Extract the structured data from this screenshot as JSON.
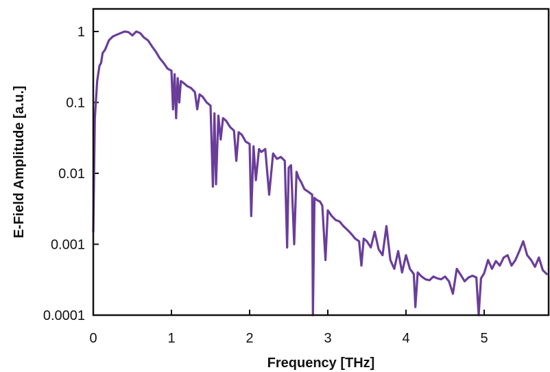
{
  "chart_data": {
    "type": "line",
    "title": "",
    "xlabel": "Frequency [THz]",
    "ylabel": "E-Field Amplitude [a.u.]",
    "xlim": [
      0,
      5.8
    ],
    "ylim": [
      0.0001,
      1.5
    ],
    "yscale": "log",
    "grid": false,
    "legend": "none",
    "color": "#6a3d9a",
    "x_ticks": [
      {
        "value": 0,
        "label": "0"
      },
      {
        "value": 1,
        "label": "1"
      },
      {
        "value": 2,
        "label": "2"
      },
      {
        "value": 3,
        "label": "3"
      },
      {
        "value": 4,
        "label": "4"
      },
      {
        "value": 5,
        "label": "5"
      }
    ],
    "y_ticks": [
      {
        "value": 1,
        "label": "1"
      },
      {
        "value": 0.1,
        "label": "0.1"
      },
      {
        "value": 0.01,
        "label": "0.01"
      },
      {
        "value": 0.001,
        "label": "0.001"
      },
      {
        "value": 0.0001,
        "label": "0.0001"
      }
    ],
    "series": [
      {
        "x": [
          0.0,
          0.02,
          0.05,
          0.08,
          0.1,
          0.12,
          0.15,
          0.2,
          0.25,
          0.3,
          0.35,
          0.4,
          0.45,
          0.5,
          0.55,
          0.6,
          0.65,
          0.7,
          0.75,
          0.8,
          0.85,
          0.9,
          0.95,
          1.0,
          1.02,
          1.04,
          1.06,
          1.08,
          1.1,
          1.12,
          1.15,
          1.2,
          1.25,
          1.3,
          1.33,
          1.36,
          1.4,
          1.45,
          1.5,
          1.53,
          1.55,
          1.57,
          1.6,
          1.63,
          1.66,
          1.7,
          1.75,
          1.8,
          1.83,
          1.86,
          1.9,
          1.95,
          2.0,
          2.02,
          2.05,
          2.08,
          2.12,
          2.15,
          2.2,
          2.25,
          2.3,
          2.35,
          2.4,
          2.45,
          2.48,
          2.5,
          2.53,
          2.57,
          2.6,
          2.63,
          2.66,
          2.7,
          2.75,
          2.8,
          2.81,
          2.83,
          2.86,
          2.9,
          2.93,
          2.97,
          3.0,
          3.05,
          3.1,
          3.15,
          3.2,
          3.25,
          3.3,
          3.35,
          3.4,
          3.43,
          3.46,
          3.5,
          3.55,
          3.6,
          3.65,
          3.7,
          3.75,
          3.8,
          3.85,
          3.9,
          3.95,
          4.0,
          4.05,
          4.1,
          4.12,
          4.15,
          4.2,
          4.25,
          4.3,
          4.35,
          4.4,
          4.45,
          4.5,
          4.55,
          4.6,
          4.65,
          4.7,
          4.75,
          4.8,
          4.85,
          4.9,
          4.93,
          4.96,
          5.0,
          5.05,
          5.1,
          5.15,
          5.2,
          5.25,
          5.3,
          5.35,
          5.4,
          5.45,
          5.5,
          5.55,
          5.6,
          5.65,
          5.7,
          5.75,
          5.8
        ],
        "values": [
          0.0015,
          0.06,
          0.2,
          0.33,
          0.36,
          0.5,
          0.55,
          0.75,
          0.85,
          0.9,
          0.95,
          1.0,
          0.98,
          0.88,
          1.0,
          0.95,
          0.82,
          0.75,
          0.62,
          0.52,
          0.42,
          0.36,
          0.3,
          0.28,
          0.08,
          0.25,
          0.06,
          0.22,
          0.1,
          0.2,
          0.19,
          0.17,
          0.16,
          0.14,
          0.08,
          0.13,
          0.12,
          0.1,
          0.09,
          0.0065,
          0.07,
          0.007,
          0.065,
          0.03,
          0.06,
          0.055,
          0.045,
          0.04,
          0.015,
          0.038,
          0.035,
          0.028,
          0.026,
          0.0025,
          0.024,
          0.008,
          0.022,
          0.02,
          0.022,
          0.005,
          0.019,
          0.016,
          0.017,
          0.015,
          0.0009,
          0.012,
          0.013,
          0.001,
          0.0105,
          0.0085,
          0.0075,
          0.006,
          0.0055,
          0.005,
          0.0001,
          0.0045,
          0.0042,
          0.004,
          0.0035,
          0.0006,
          0.003,
          0.0025,
          0.0022,
          0.0021,
          0.0018,
          0.0016,
          0.0014,
          0.0012,
          0.0011,
          0.0005,
          0.0012,
          0.0011,
          0.0009,
          0.0015,
          0.00085,
          0.0007,
          0.0018,
          0.0006,
          0.00045,
          0.0008,
          0.0004,
          0.0007,
          0.00045,
          0.00038,
          0.00013,
          0.0004,
          0.00035,
          0.00032,
          0.00031,
          0.00035,
          0.00033,
          0.00032,
          0.00035,
          0.0003,
          0.0002,
          0.00045,
          0.00037,
          0.0003,
          0.00034,
          0.00036,
          0.00034,
          0.0001,
          0.00033,
          0.00039,
          0.0006,
          0.00045,
          0.00058,
          0.0005,
          0.00065,
          0.0007,
          0.0005,
          0.0006,
          0.0008,
          0.0011,
          0.0007,
          0.0006,
          0.00048,
          0.00065,
          0.00043,
          0.00038
        ]
      }
    ]
  }
}
